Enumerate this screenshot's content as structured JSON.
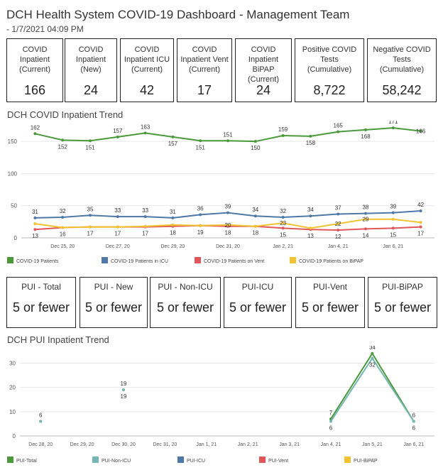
{
  "header": {
    "title": "DCH Health System COVID-19 Dashboard - Management Team",
    "subtitle": " - 1/7/2021 04:09 PM"
  },
  "kpis": [
    {
      "label": "COVID Inpatient (Current)",
      "value": "166"
    },
    {
      "label": "COVID Inpatient (New)",
      "value": "24"
    },
    {
      "label": "COVID Inpatient ICU (Current)",
      "value": "42"
    },
    {
      "label": "COVID Inpatient Vent (Current)",
      "value": "17"
    },
    {
      "label": "COVID Inpatient BiPAP (Current)",
      "value": "24"
    },
    {
      "label": "Positive COVID Tests (Cumulative)",
      "value": "8,722"
    },
    {
      "label": "Negative COVID Tests (Cumulative)",
      "value": "58,242"
    }
  ],
  "pui_cards": [
    {
      "label": "PUI - Total",
      "value": "5 or fewer"
    },
    {
      "label": "PUI - New",
      "value": "5 or fewer"
    },
    {
      "label": "PUI - Non-ICU",
      "value": "5 or fewer"
    },
    {
      "label": "PUI-ICU",
      "value": "5 or fewer"
    },
    {
      "label": "PUI-Vent",
      "value": "5 or fewer"
    },
    {
      "label": "PUI-BiPAP",
      "value": "5 or fewer"
    }
  ],
  "chart_data": [
    {
      "type": "line",
      "title": "DCH COVID Inpatient Trend",
      "ylim": [
        0,
        180
      ],
      "yticks": [
        0,
        50,
        100,
        150
      ],
      "grid": true,
      "legend_position": "bottom",
      "x": [
        "Dec 24, 20",
        "Dec 25, 20",
        "Dec 26, 20",
        "Dec 27, 20",
        "Dec 28, 20",
        "Dec 29, 20",
        "Dec 30, 20",
        "Dec 31, 20",
        "Jan 1, 21",
        "Jan 2, 21",
        "Jan 3, 21",
        "Jan 4, 21",
        "Jan 5, 21",
        "Jan 6, 21",
        "Jan 7, 21"
      ],
      "xtick_labels": [
        "Dec 25, 20",
        "Dec 27, 20",
        "Dec 29, 20",
        "Dec 31, 20",
        "Jan 2, 21",
        "Jan 4, 21",
        "Jan 6, 21"
      ],
      "series": [
        {
          "name": "COVID-19 Patients",
          "color": "#4a9a3c",
          "values": [
            162,
            152,
            151,
            157,
            163,
            157,
            151,
            151,
            150,
            159,
            158,
            165,
            168,
            171,
            166
          ],
          "labels": [
            "162",
            "152",
            "151",
            "157",
            "163",
            "157",
            "151",
            "151",
            "150",
            "159",
            "158",
            "165",
            "168",
            "171",
            "166"
          ]
        },
        {
          "name": "COVID-19 Patients in ICU",
          "color": "#4e79a7",
          "values": [
            31,
            32,
            35,
            33,
            33,
            31,
            36,
            39,
            34,
            32,
            34,
            37,
            38,
            39,
            42
          ],
          "labels": [
            "31",
            "32",
            "35",
            "33",
            "33",
            "31",
            "36",
            "39",
            "34",
            "32",
            "34",
            "37",
            "38",
            "39",
            "42"
          ]
        },
        {
          "name": "COVID-19 Patients on Vent",
          "color": "#e15759",
          "values": [
            13,
            16,
            17,
            17,
            17,
            18,
            19,
            18,
            18,
            15,
            13,
            12,
            14,
            15,
            17
          ],
          "labels": [
            "13",
            "16",
            "17",
            "17",
            "17",
            "18",
            "19",
            "18",
            "18",
            "15",
            "13",
            "12",
            "14",
            "15",
            "17"
          ]
        },
        {
          "name": "COVID-19 Patients on BiPAP",
          "color": "#f1c232",
          "values": [
            22,
            16,
            17,
            17,
            18,
            20,
            19,
            20,
            18,
            23,
            15,
            22,
            29,
            29,
            24
          ],
          "labels": [
            "",
            "",
            "",
            "",
            "",
            "",
            "",
            "20",
            "",
            "23",
            "",
            "22",
            "29",
            "",
            ""
          ]
        }
      ]
    },
    {
      "type": "line",
      "title": "DCH PUI Inpatient Trend",
      "ylim": [
        0,
        36
      ],
      "yticks": [
        0,
        10,
        20,
        30
      ],
      "grid": true,
      "legend_position": "bottom",
      "x": [
        "Dec 28, 20",
        "Dec 29, 20",
        "Dec 30, 20",
        "Dec 31, 20",
        "Jan 1, 21",
        "Jan 2, 21",
        "Jan 3, 21",
        "Jan 4, 21",
        "Jan 5, 21",
        "Jan 6, 21"
      ],
      "xtick_labels": [
        "Dec 28, 20",
        "Dec 29, 20",
        "Dec 30, 20",
        "Dec 31, 20",
        "Jan 1, 21",
        "Jan 2, 21",
        "Jan 3, 21",
        "Jan 4, 21",
        "Jan 5, 21",
        "Jan 6, 21"
      ],
      "series": [
        {
          "name": "PUI-Total",
          "color": "#4a9a3c",
          "values": [
            6,
            null,
            19,
            null,
            null,
            null,
            null,
            7,
            34,
            6
          ],
          "labels": [
            "6",
            "",
            "19",
            "",
            "",
            "",
            "",
            "7",
            "34",
            "6"
          ]
        },
        {
          "name": "PUI-Non-ICU",
          "color": "#76b7b2",
          "values": [
            6,
            null,
            19,
            null,
            null,
            null,
            null,
            6,
            32,
            6
          ],
          "labels": [
            "",
            "",
            "19",
            "",
            "",
            "",
            "",
            "6",
            "32",
            "6"
          ]
        },
        {
          "name": "PUI-ICU",
          "color": "#4e79a7",
          "values": [
            null,
            null,
            null,
            null,
            null,
            null,
            null,
            null,
            null,
            null
          ],
          "labels": []
        },
        {
          "name": "PUI-Vent",
          "color": "#e15759",
          "values": [
            null,
            null,
            null,
            null,
            null,
            null,
            null,
            null,
            null,
            null
          ],
          "labels": []
        },
        {
          "name": "PUI-BiPAP",
          "color": "#f1c232",
          "values": [
            null,
            null,
            null,
            null,
            null,
            null,
            null,
            null,
            null,
            null
          ],
          "labels": []
        }
      ]
    }
  ]
}
